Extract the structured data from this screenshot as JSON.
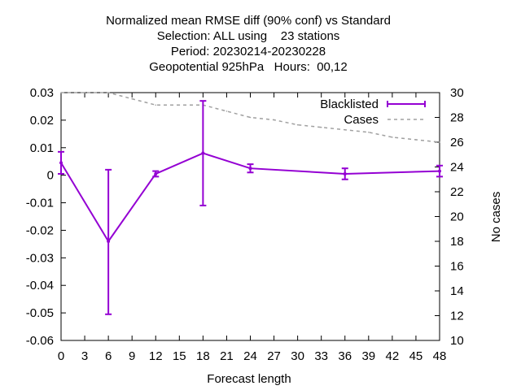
{
  "chart_data": {
    "type": "line",
    "title_lines": [
      "Normalized mean RMSE diff (90% conf) vs Standard",
      "Selection: ALL using    23 stations",
      "Period: 20230214-20230228",
      "Geopotential 925hPa   Hours:  00,12"
    ],
    "xlabel": "Forecast length",
    "ylabel": "",
    "y2label": "No cases",
    "xlim": [
      0,
      48
    ],
    "ylim": [
      -0.06,
      0.03
    ],
    "y2lim": [
      10,
      30
    ],
    "xticks": [
      "0",
      "3",
      "6",
      "9",
      "12",
      "15",
      "18",
      "21",
      "24",
      "27",
      "30",
      "33",
      "36",
      "39",
      "42",
      "45",
      "48"
    ],
    "yticks": [
      "0.03",
      "0.02",
      "0.01",
      "0",
      "-0.01",
      "-0.02",
      "-0.03",
      "-0.04",
      "-0.05",
      "-0.06"
    ],
    "y2ticks": [
      "30",
      "28",
      "26",
      "24",
      "22",
      "20",
      "18",
      "16",
      "14",
      "12",
      "10"
    ],
    "legend_position": "top-right",
    "grid": false,
    "series": [
      {
        "name": "Blacklisted",
        "axis": "y1",
        "color": "#9400d3",
        "style": "solid-errorbars",
        "x": [
          0,
          6,
          12,
          18,
          24,
          36,
          48
        ],
        "y": [
          0.0045,
          -0.024,
          0.0005,
          0.008,
          0.0025,
          0.0005,
          0.0015
        ],
        "err_low": [
          0.0005,
          -0.0505,
          -0.0005,
          -0.011,
          0.001,
          -0.0015,
          -0.0005
        ],
        "err_high": [
          0.0085,
          0.002,
          0.0015,
          0.027,
          0.004,
          0.0025,
          0.0035
        ]
      },
      {
        "name": "Cases",
        "axis": "y2",
        "color": "#a0a0a0",
        "style": "dashed",
        "x": [
          0,
          3,
          6,
          9,
          12,
          15,
          18,
          21,
          24,
          27,
          30,
          33,
          36,
          39,
          42,
          45,
          48
        ],
        "y": [
          30,
          30,
          30,
          29.5,
          29,
          29,
          29,
          28.5,
          28,
          27.8,
          27.4,
          27.2,
          27,
          26.8,
          26.4,
          26.2,
          26
        ]
      }
    ]
  }
}
